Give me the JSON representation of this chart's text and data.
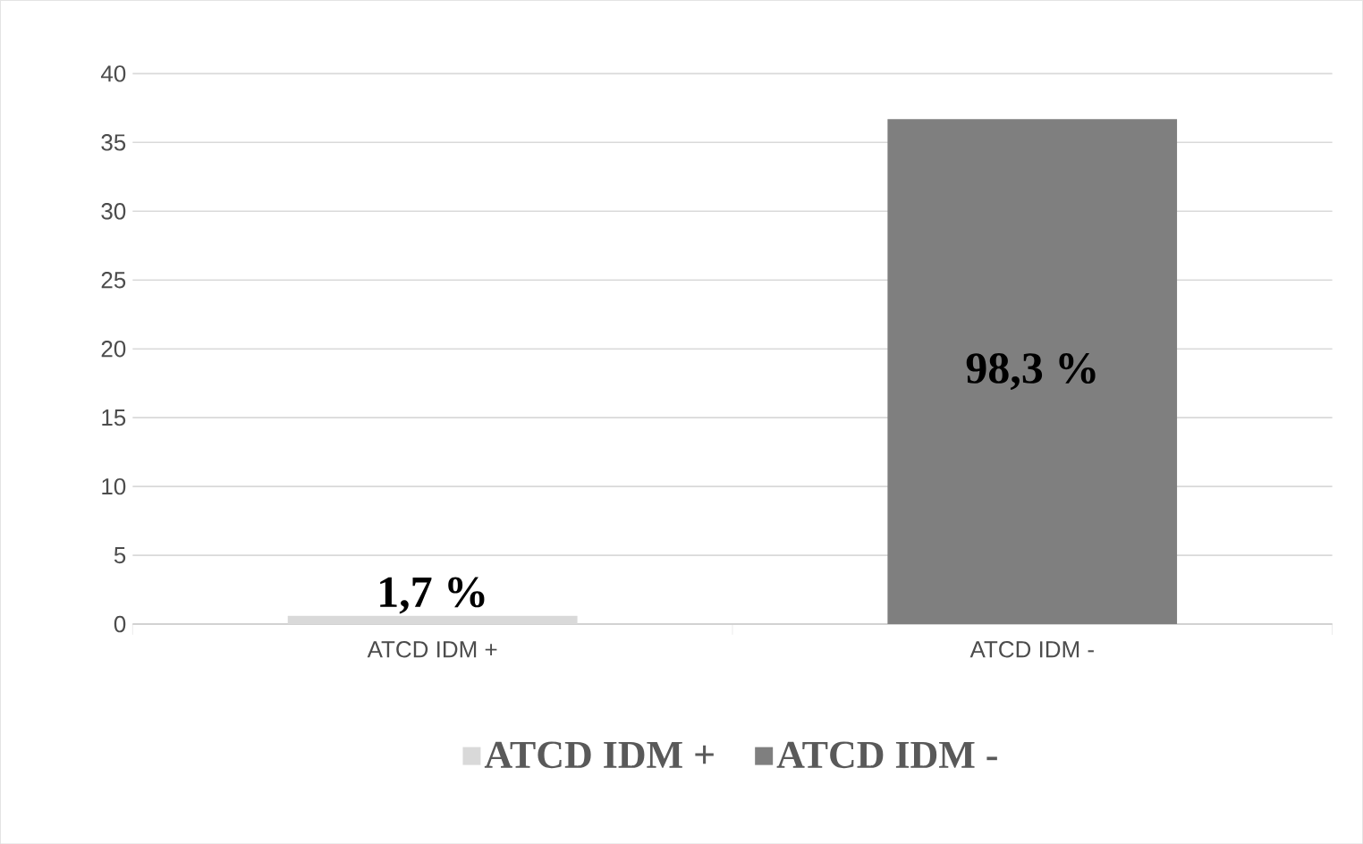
{
  "chart_data": {
    "type": "bar",
    "categories": [
      "ATCD IDM +",
      "ATCD IDM -"
    ],
    "series": [
      {
        "name": "ATCD IDM +",
        "color": "#d9d9d9",
        "values": [
          0.6,
          null
        ]
      },
      {
        "name": "ATCD IDM -",
        "color": "#7f7f7f",
        "values": [
          null,
          36.7
        ]
      }
    ],
    "annotations": [
      "1,7 %",
      "98,3 %"
    ],
    "ylim": [
      0,
      40
    ],
    "yticks": [
      0,
      5,
      10,
      15,
      20,
      25,
      30,
      35,
      40
    ],
    "grid": "y",
    "legend": "bottom"
  }
}
